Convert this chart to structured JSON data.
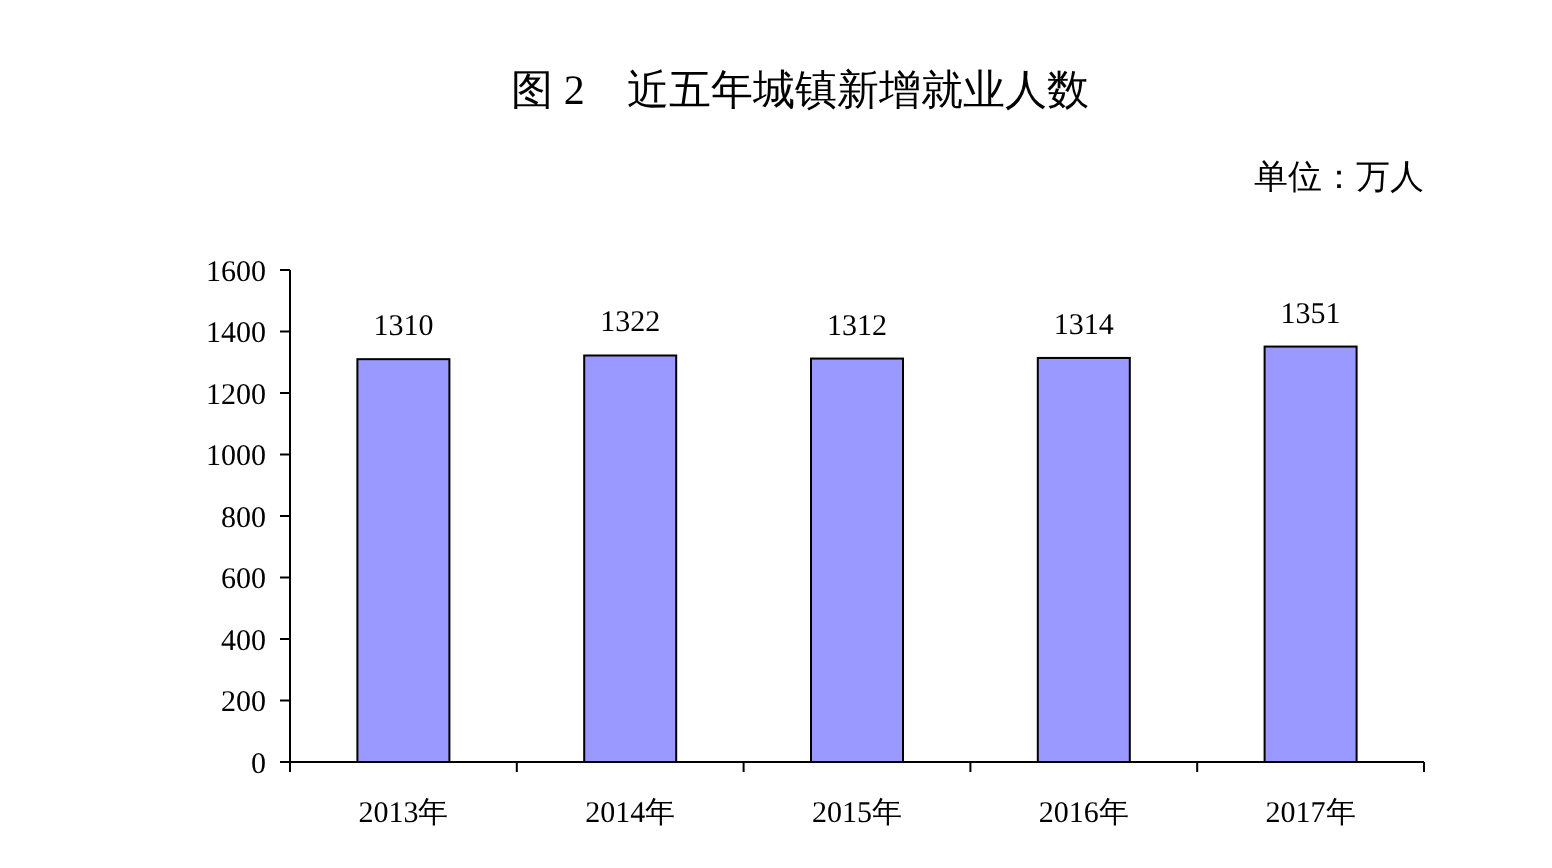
{
  "chart_data": {
    "type": "bar",
    "title": "图 2　近五年城镇新增就业人数",
    "annotations": [
      "单位：万人"
    ],
    "categories": [
      "2013年",
      "2014年",
      "2015年",
      "2016年",
      "2017年"
    ],
    "values": [
      1310,
      1322,
      1312,
      1314,
      1351
    ],
    "color": "#9999ff",
    "ylim": [
      0,
      1600
    ],
    "yticks": [
      0,
      200,
      400,
      600,
      800,
      1000,
      1200,
      1400,
      1600
    ],
    "data_labels": true,
    "grid": false
  }
}
